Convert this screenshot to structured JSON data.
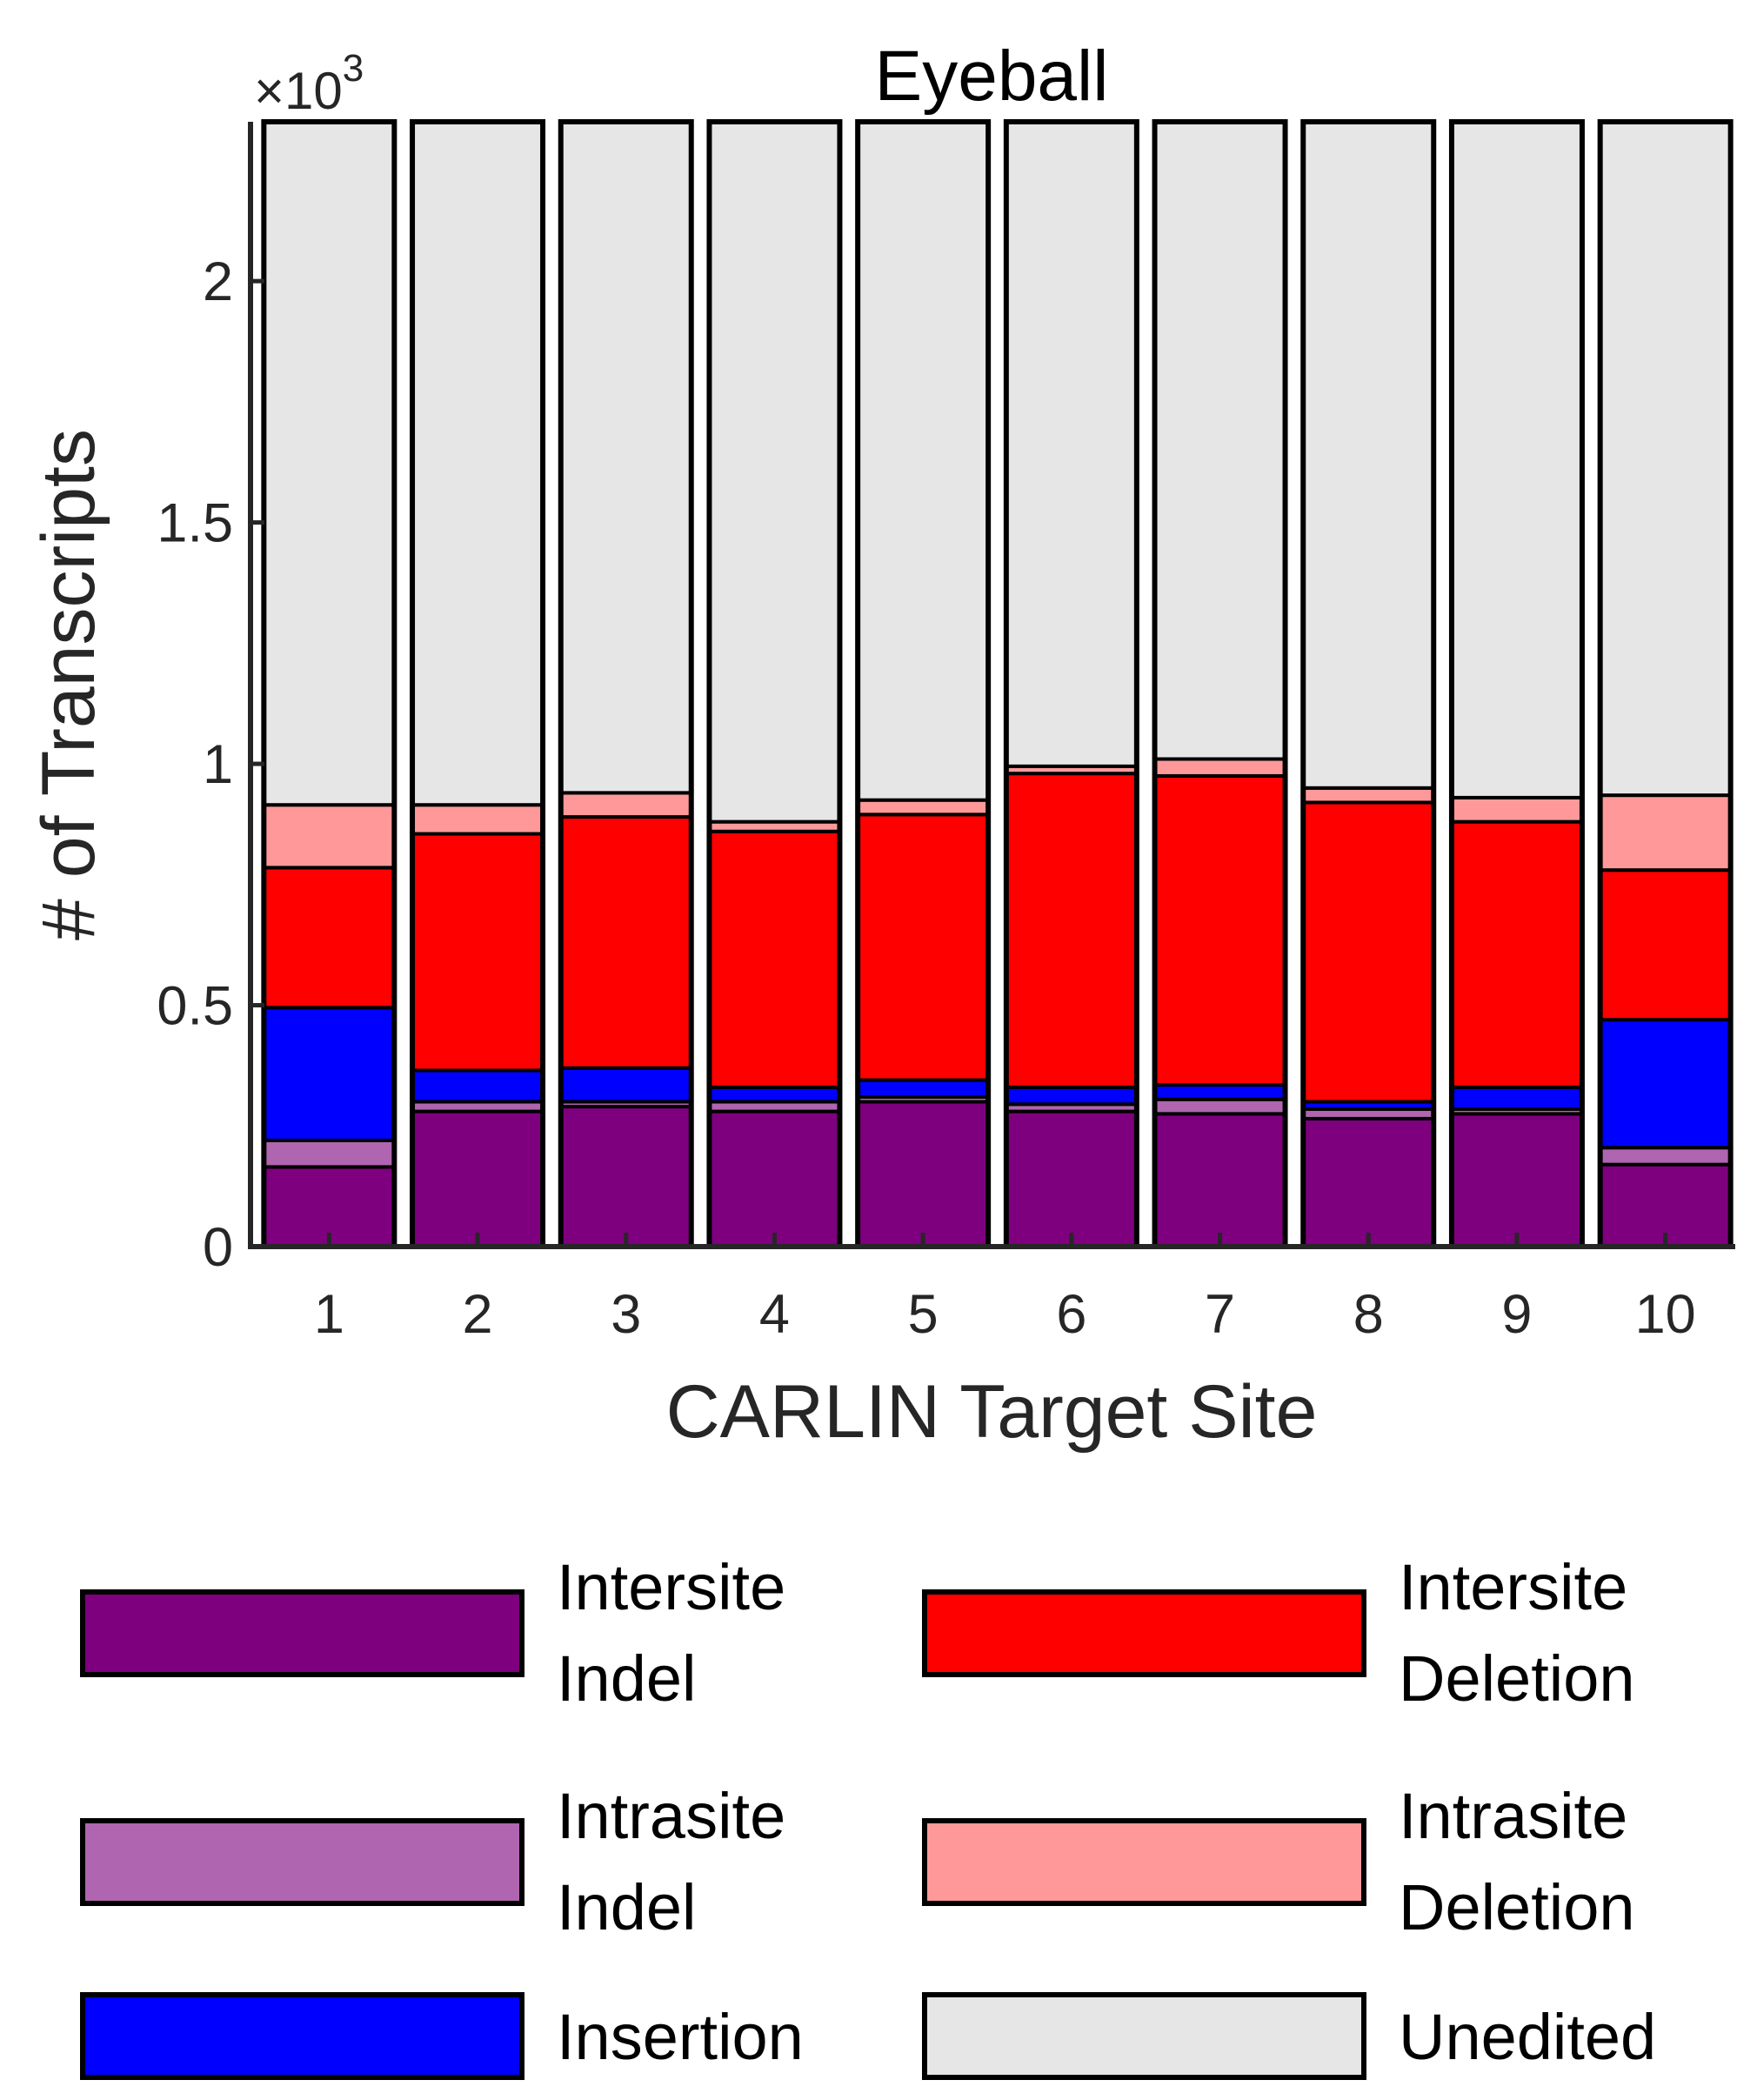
{
  "chart_data": {
    "type": "bar",
    "stacked": true,
    "title": "Eyeball",
    "xlabel": "CARLIN Target Site",
    "ylabel": "# of Transcripts",
    "y_multiplier_label": {
      "base": "×10",
      "exponent": "3"
    },
    "categories": [
      "1",
      "2",
      "3",
      "4",
      "5",
      "6",
      "7",
      "8",
      "9",
      "10"
    ],
    "ylim": [
      0,
      2.33
    ],
    "yticks": [
      0,
      0.5,
      1,
      1.5,
      2
    ],
    "ytick_labels": [
      "0",
      "0.5",
      "1",
      "1.5",
      "2"
    ],
    "bar_total": 2.33,
    "grid": false,
    "legend_position": "below",
    "series": [
      {
        "name": "Intersite Indel",
        "color": "#7f007f",
        "values": [
          0.165,
          0.28,
          0.29,
          0.28,
          0.3,
          0.28,
          0.275,
          0.265,
          0.275,
          0.17
        ]
      },
      {
        "name": "Intrasite Indel",
        "color": "#b065b0",
        "values": [
          0.055,
          0.02,
          0.01,
          0.02,
          0.01,
          0.015,
          0.03,
          0.02,
          0.01,
          0.035
        ]
      },
      {
        "name": "Insertion",
        "color": "#0000ff",
        "values": [
          0.275,
          0.065,
          0.07,
          0.03,
          0.035,
          0.035,
          0.03,
          0.015,
          0.045,
          0.265
        ]
      },
      {
        "name": "Intersite Deletion",
        "color": "#ff0000",
        "values": [
          0.29,
          0.49,
          0.52,
          0.53,
          0.55,
          0.65,
          0.64,
          0.62,
          0.55,
          0.31
        ]
      },
      {
        "name": "Intrasite Deletion",
        "color": "#ff9999",
        "values": [
          0.13,
          0.06,
          0.05,
          0.02,
          0.03,
          0.015,
          0.035,
          0.03,
          0.05,
          0.155
        ]
      },
      {
        "name": "Unedited",
        "color": "#e6e6e6",
        "values": [
          1.415,
          1.415,
          1.39,
          1.45,
          1.405,
          1.335,
          1.32,
          1.38,
          1.4,
          1.395
        ]
      }
    ]
  },
  "legend": {
    "items": [
      {
        "line1": "Intersite",
        "line2": "Indel",
        "color": "#7f007f"
      },
      {
        "line1": "Intersite",
        "line2": "Deletion",
        "color": "#ff0000"
      },
      {
        "line1": "Intrasite",
        "line2": "Indel",
        "color": "#b065b0"
      },
      {
        "line1": "Intrasite",
        "line2": "Deletion",
        "color": "#ff9999"
      },
      {
        "line1": "Insertion",
        "line2": "",
        "color": "#0000ff"
      },
      {
        "line1": "Unedited",
        "line2": "",
        "color": "#e6e6e6"
      }
    ]
  }
}
